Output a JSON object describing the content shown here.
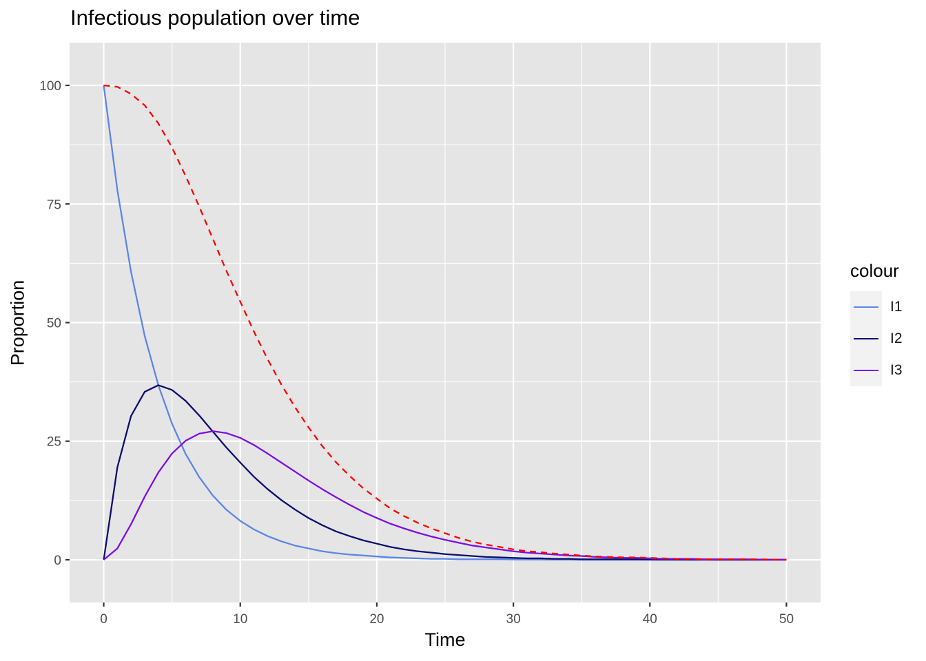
{
  "chart_data": {
    "type": "line",
    "title": "Infectious population over time",
    "xlabel": "Time",
    "ylabel": "Proportion",
    "xlim": [
      -2.5,
      52.5
    ],
    "ylim": [
      -9,
      109
    ],
    "x_ticks": [
      0,
      10,
      20,
      30,
      40,
      50
    ],
    "y_ticks": [
      0,
      25,
      50,
      75,
      100
    ],
    "grid": true,
    "legend": {
      "title": "colour",
      "placement": "right"
    },
    "x": [
      0,
      1,
      2,
      3,
      4,
      5,
      6,
      7,
      8,
      9,
      10,
      11,
      12,
      13,
      14,
      15,
      16,
      17,
      18,
      19,
      20,
      21,
      22,
      23,
      24,
      25,
      26,
      27,
      28,
      29,
      30,
      31,
      32,
      33,
      34,
      35,
      36,
      37,
      38,
      39,
      40,
      41,
      42,
      43,
      44,
      45,
      46,
      47,
      48,
      49,
      50
    ],
    "series": [
      {
        "name": "I1",
        "color": "#5b86e5",
        "dashed": false,
        "values": [
          100,
          77.9,
          60.7,
          47.2,
          36.8,
          28.7,
          22.3,
          17.4,
          13.5,
          10.5,
          8.2,
          6.4,
          5.0,
          3.9,
          3.0,
          2.4,
          1.8,
          1.4,
          1.1,
          0.9,
          0.7,
          0.5,
          0.4,
          0.3,
          0.2,
          0.2,
          0.1,
          0.1,
          0.1,
          0.1,
          0.05,
          0.04,
          0.03,
          0.02,
          0.02,
          0.01,
          0.01,
          0.01,
          0.01,
          0,
          0,
          0,
          0,
          0,
          0,
          0,
          0,
          0,
          0,
          0,
          0
        ]
      },
      {
        "name": "I2",
        "color": "#0c0c6e",
        "dashed": false,
        "values": [
          0,
          19.5,
          30.3,
          35.4,
          36.8,
          35.8,
          33.5,
          30.4,
          27.0,
          23.6,
          20.5,
          17.5,
          14.9,
          12.6,
          10.6,
          8.8,
          7.3,
          6.0,
          5.0,
          4.1,
          3.4,
          2.7,
          2.2,
          1.8,
          1.5,
          1.2,
          1.0,
          0.8,
          0.6,
          0.5,
          0.4,
          0.3,
          0.3,
          0.2,
          0.2,
          0.1,
          0.1,
          0.1,
          0.1,
          0.1,
          0.05,
          0.04,
          0.03,
          0.02,
          0.02,
          0.01,
          0.01,
          0.01,
          0,
          0,
          0
        ]
      },
      {
        "name": "I3",
        "color": "#7b0ee6",
        "dashed": false,
        "values": [
          0,
          2.4,
          7.5,
          13.3,
          18.4,
          22.4,
          25.1,
          26.6,
          27.1,
          26.7,
          25.7,
          24.2,
          22.4,
          20.5,
          18.6,
          16.7,
          14.9,
          13.2,
          11.6,
          10.1,
          8.8,
          7.6,
          6.6,
          5.7,
          4.9,
          4.2,
          3.6,
          3.0,
          2.6,
          2.2,
          1.8,
          1.5,
          1.3,
          1.1,
          0.9,
          0.8,
          0.6,
          0.5,
          0.4,
          0.4,
          0.3,
          0.2,
          0.2,
          0.2,
          0.1,
          0.1,
          0.1,
          0.1,
          0.05,
          0.04,
          0.03
        ]
      },
      {
        "color": "#ff0000",
        "dashed": true,
        "values": [
          100,
          99.7,
          98.2,
          95.8,
          92.0,
          86.9,
          80.9,
          74.4,
          67.6,
          60.8,
          54.4,
          48.1,
          42.3,
          37.0,
          32.2,
          27.9,
          24.0,
          20.6,
          17.7,
          15.1,
          12.9,
          10.8,
          9.2,
          7.8,
          6.6,
          5.6,
          4.6,
          3.8,
          3.2,
          2.7,
          2.2,
          1.8,
          1.6,
          1.3,
          1.1,
          0.9,
          0.7,
          0.6,
          0.5,
          0.5,
          0.4,
          0.3,
          0.2,
          0.2,
          0.1,
          0.1,
          0.1,
          0.1,
          0.1,
          0.05,
          0.04
        ]
      }
    ]
  }
}
